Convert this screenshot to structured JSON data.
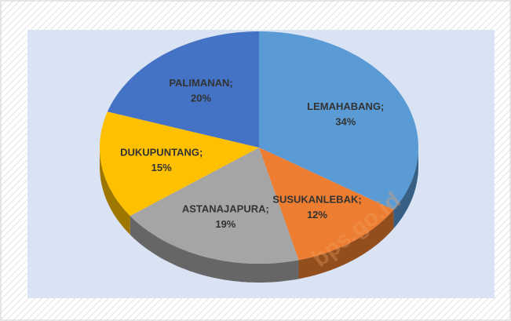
{
  "chart_data": {
    "type": "pie",
    "categories": [
      "LEMAHABANG;",
      "SUSUKANLEBAK;",
      "ASTANAJAPURA;",
      "DUKUPUNTANG;",
      "PALIMANAN;"
    ],
    "values": [
      34,
      12,
      19,
      15,
      20
    ],
    "value_labels": [
      "34%",
      "12%",
      "19%",
      "15%",
      "20%"
    ],
    "colors": [
      "#5b9bd5",
      "#ed7d31",
      "#a5a5a5",
      "#ffc000",
      "#4472c4"
    ],
    "watermark": "bps.go.id"
  }
}
